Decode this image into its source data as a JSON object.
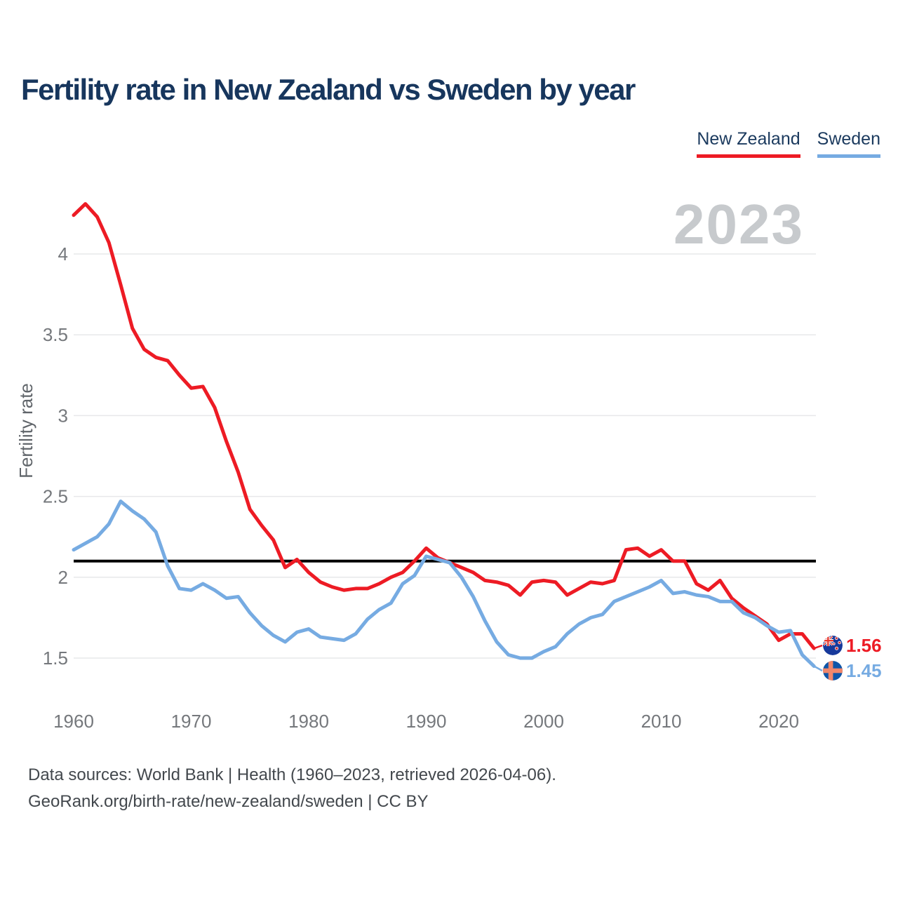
{
  "title": "Fertility rate in New Zealand vs Sweden by year",
  "watermark": "2023",
  "footer": {
    "line1": "Data sources: World Bank | Health (1960–2023, retrieved 2026-04-06).",
    "line2": "GeoRank.org/birth-rate/new-zealand/sweden | CC BY"
  },
  "colors": {
    "new_zealand": "#ED1B24",
    "sweden": "#76ABE2",
    "title_navy": "#17365D",
    "gridline": "#E7E8EA",
    "tick_gray": "#75787C",
    "watermark_gray": "#C7CACD",
    "reference_black": "#000000"
  },
  "chart_data": {
    "type": "line",
    "title": "Fertility rate in New Zealand vs Sweden by year",
    "xlabel": "",
    "ylabel": "Fertility rate",
    "grid": true,
    "legend_position": "top-right",
    "ylim": [
      1.3,
      4.45
    ],
    "yticks": [
      4,
      3.5,
      3,
      2.5,
      2,
      1.5
    ],
    "xticks": [
      1960,
      1970,
      1980,
      1990,
      2000,
      2010,
      2020
    ],
    "x": [
      1960,
      1961,
      1962,
      1963,
      1964,
      1965,
      1966,
      1967,
      1968,
      1969,
      1970,
      1971,
      1972,
      1973,
      1974,
      1975,
      1976,
      1977,
      1978,
      1979,
      1980,
      1981,
      1982,
      1983,
      1984,
      1985,
      1986,
      1987,
      1988,
      1989,
      1990,
      1991,
      1992,
      1993,
      1994,
      1995,
      1996,
      1997,
      1998,
      1999,
      2000,
      2001,
      2002,
      2003,
      2004,
      2005,
      2006,
      2007,
      2008,
      2009,
      2010,
      2011,
      2012,
      2013,
      2014,
      2015,
      2016,
      2017,
      2018,
      2019,
      2020,
      2021,
      2022,
      2023
    ],
    "series": [
      {
        "name": "New Zealand",
        "color": "#ED1B24",
        "values": [
          4.24,
          4.31,
          4.23,
          4.07,
          3.81,
          3.54,
          3.41,
          3.36,
          3.34,
          3.25,
          3.17,
          3.18,
          3.05,
          2.84,
          2.65,
          2.42,
          2.32,
          2.23,
          2.06,
          2.11,
          2.03,
          1.97,
          1.94,
          1.92,
          1.93,
          1.93,
          1.96,
          2.0,
          2.03,
          2.1,
          2.18,
          2.12,
          2.09,
          2.06,
          2.03,
          1.98,
          1.97,
          1.95,
          1.89,
          1.97,
          1.98,
          1.97,
          1.89,
          1.93,
          1.97,
          1.96,
          1.98,
          2.17,
          2.18,
          2.13,
          2.17,
          2.1,
          2.1,
          1.96,
          1.92,
          1.98,
          1.87,
          1.81,
          1.76,
          1.71,
          1.61,
          1.65,
          1.65,
          1.56
        ]
      },
      {
        "name": "Sweden",
        "color": "#76ABE2",
        "values": [
          2.17,
          2.21,
          2.25,
          2.33,
          2.47,
          2.41,
          2.36,
          2.28,
          2.07,
          1.93,
          1.92,
          1.96,
          1.92,
          1.87,
          1.88,
          1.78,
          1.7,
          1.64,
          1.6,
          1.66,
          1.68,
          1.63,
          1.62,
          1.61,
          1.65,
          1.74,
          1.8,
          1.84,
          1.96,
          2.01,
          2.13,
          2.11,
          2.09,
          2.0,
          1.88,
          1.73,
          1.6,
          1.52,
          1.5,
          1.5,
          1.54,
          1.57,
          1.65,
          1.71,
          1.75,
          1.77,
          1.85,
          1.88,
          1.91,
          1.94,
          1.98,
          1.9,
          1.91,
          1.89,
          1.88,
          1.85,
          1.85,
          1.78,
          1.75,
          1.7,
          1.66,
          1.67,
          1.52,
          1.45
        ]
      }
    ],
    "reference_line": {
      "value": 2.1,
      "color": "#000000"
    },
    "end_labels": [
      {
        "series": "New Zealand",
        "value": "1.56",
        "flag": "new-zealand"
      },
      {
        "series": "Sweden",
        "value": "1.45",
        "flag": "sweden"
      }
    ]
  }
}
